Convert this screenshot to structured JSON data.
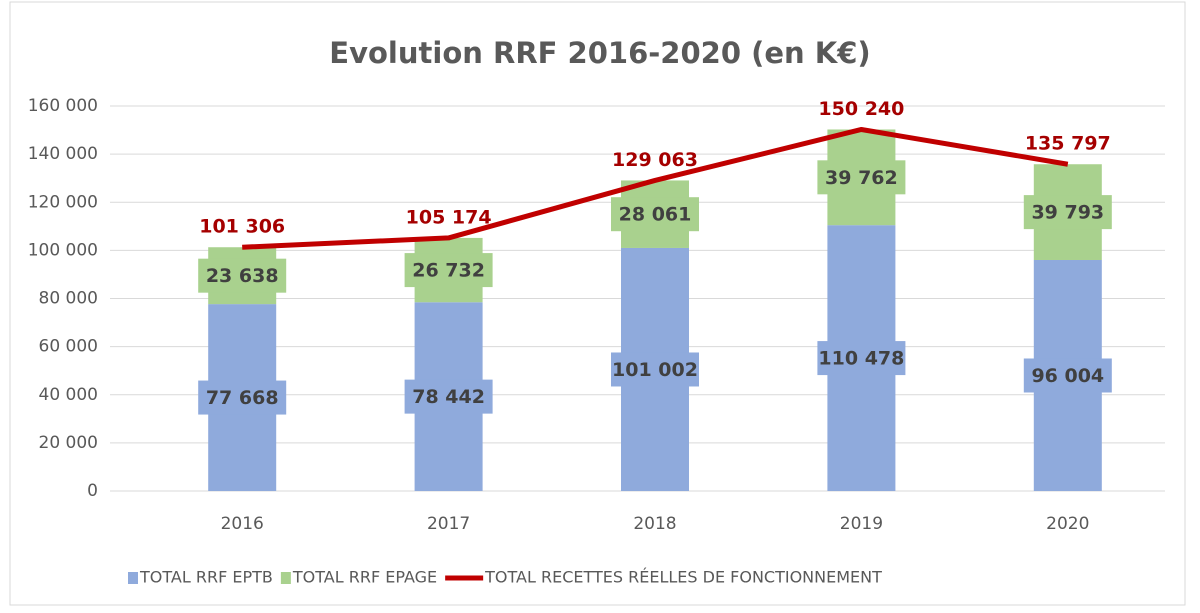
{
  "chart_data": {
    "type": "bar_line",
    "title": "Evolution RRF 2016-2020 (en K€)",
    "categories": [
      "2016",
      "2017",
      "2018",
      "2019",
      "2020"
    ],
    "series": [
      {
        "name": "TOTAL RRF EPTB",
        "type": "bar",
        "color": "#8faadc",
        "values": [
          77668,
          78442,
          101002,
          110478,
          96004
        ],
        "value_labels": [
          "77 668",
          "78 442",
          "101 002",
          "110 478",
          "96 004"
        ]
      },
      {
        "name": "TOTAL RRF EPAGE",
        "type": "bar",
        "color": "#a9d18e",
        "values": [
          23638,
          26732,
          28061,
          39762,
          39793
        ],
        "value_labels": [
          "23 638",
          "26 732",
          "28 061",
          "39 762",
          "39 793"
        ]
      },
      {
        "name": "TOTAL RECETTES RÉELLES DE FONCTIONNEMENT",
        "type": "line",
        "color": "#c00000",
        "values": [
          101306,
          105174,
          129063,
          150240,
          135797
        ],
        "value_labels": [
          "101 306",
          "105 174",
          "129 063",
          "150 240",
          "135 797"
        ]
      }
    ],
    "stacked": true,
    "ylim": [
      0,
      160000
    ],
    "yticks": [
      0,
      {
        "value": 20000,
        "label": "20 000"
      },
      {
        "value": 40000,
        "label": "40 000"
      },
      {
        "value": 60000,
        "label": "60 000"
      },
      {
        "value": 80000,
        "label": "80 000"
      },
      {
        "value": 100000,
        "label": "100 000"
      },
      {
        "value": 120000,
        "label": "120 000"
      },
      {
        "value": 140000,
        "label": "140 000"
      },
      {
        "value": 160000,
        "label": "160 000"
      }
    ],
    "grid": true,
    "legend": "bottom"
  }
}
